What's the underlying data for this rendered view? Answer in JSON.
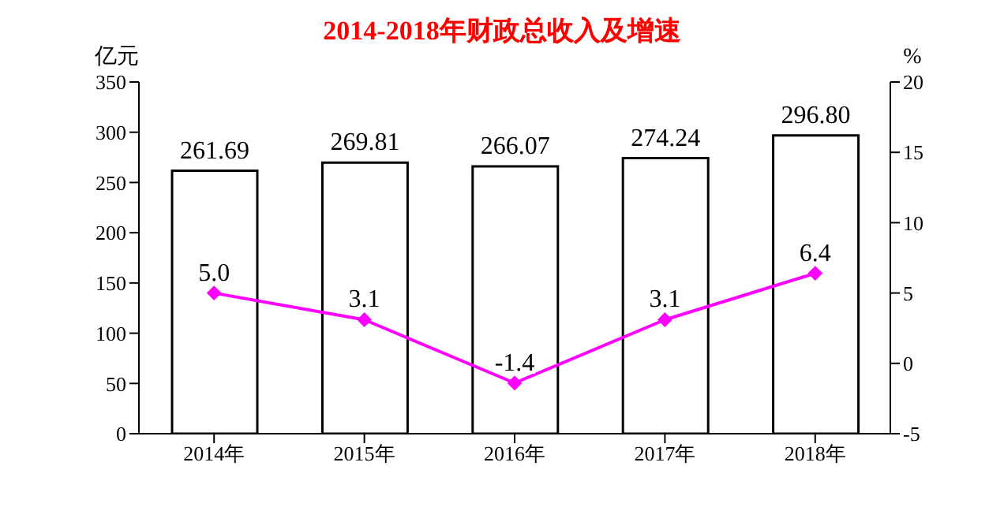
{
  "chart_data": {
    "type": "bar",
    "title": "2014-2018年财政总收入及增速",
    "ylabel": "亿元",
    "y2label": "%",
    "categories": [
      "2014年",
      "2015年",
      "2016年",
      "2017年",
      "2018年"
    ],
    "series": [
      {
        "color": "#000000",
        "values": [
          261.69,
          269.81,
          266.07,
          274.24,
          296.8
        ],
        "value_labels": [
          "261.69",
          "269.81",
          "266.07",
          "274.24",
          "296.80"
        ]
      },
      {
        "type": "line",
        "axis": "y2",
        "color": "#ff00ff",
        "marker": "diamond",
        "values": [
          5.0,
          3.1,
          -1.4,
          3.1,
          6.4
        ],
        "value_labels": [
          "5.0",
          "3.1",
          "-1.4",
          "3.1",
          "6.4"
        ]
      }
    ],
    "ylim": [
      0,
      350
    ],
    "yticks": [
      0,
      50,
      100,
      150,
      200,
      250,
      300,
      350
    ],
    "y2lim": [
      -5,
      20
    ],
    "y2ticks": [
      -5,
      0,
      5,
      10,
      15,
      20
    ],
    "grid": false,
    "legend": false
  }
}
